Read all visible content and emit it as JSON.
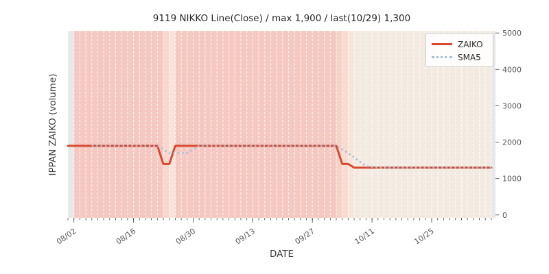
{
  "chart_data": {
    "type": "line",
    "title": "9119 NIKKO Line(Close) / max 1,900 / last(10/29) 1,300",
    "xlabel": "DATE",
    "ylabel": "IPPAN ZAIKO (volume)",
    "ylim": [
      0,
      5000
    ],
    "yticks": [
      0,
      1000,
      2000,
      3000,
      4000,
      5000
    ],
    "xticks": {
      "labels": [
        "08/02",
        "08/16",
        "08/30",
        "09/13",
        "09/27",
        "10/11",
        "10/25"
      ],
      "indices": [
        1,
        11,
        21,
        31,
        41,
        51,
        61
      ]
    },
    "n_points": 72,
    "legend_position": "upper right",
    "grid": "vertical-daily-dashed",
    "colors": {
      "zaiko_line": "#d9492f",
      "sma5_line": "#a3bedb",
      "grid_line": "#ffffff",
      "tick_text": "#555555",
      "title_text": "#262626",
      "figure_bg": "#ffffff",
      "plot_bg": "#ffffff"
    },
    "series": [
      {
        "name": "ZAIKO",
        "style": "solid",
        "values": [
          1900,
          1900,
          1900,
          1900,
          1900,
          1900,
          1900,
          1900,
          1900,
          1900,
          1900,
          1900,
          1900,
          1900,
          1900,
          1900,
          1400,
          1400,
          1900,
          1900,
          1900,
          1900,
          1900,
          1900,
          1900,
          1900,
          1900,
          1900,
          1900,
          1900,
          1900,
          1900,
          1900,
          1900,
          1900,
          1900,
          1900,
          1900,
          1900,
          1900,
          1900,
          1900,
          1900,
          1900,
          1900,
          1900,
          1400,
          1400,
          1300,
          1300,
          1300,
          1300,
          1300,
          1300,
          1300,
          1300,
          1300,
          1300,
          1300,
          1300,
          1300,
          1300,
          1300,
          1300,
          1300,
          1300,
          1300,
          1300,
          1300,
          1300,
          1300,
          1300
        ]
      },
      {
        "name": "SMA5",
        "style": "dotted",
        "values": [
          null,
          null,
          null,
          null,
          1900,
          1900,
          1900,
          1900,
          1900,
          1900,
          1900,
          1900,
          1900,
          1900,
          1900,
          1900,
          1800,
          1700,
          1700,
          1700,
          1700,
          1800,
          1900,
          1900,
          1900,
          1900,
          1900,
          1900,
          1900,
          1900,
          1900,
          1900,
          1900,
          1900,
          1900,
          1900,
          1900,
          1900,
          1900,
          1900,
          1900,
          1900,
          1900,
          1900,
          1900,
          1900,
          1800,
          1700,
          1580,
          1460,
          1340,
          1320,
          1300,
          1300,
          1300,
          1300,
          1300,
          1300,
          1300,
          1300,
          1300,
          1300,
          1300,
          1300,
          1300,
          1300,
          1300,
          1300,
          1300,
          1300,
          1300,
          1300
        ]
      }
    ],
    "background_bands": [
      {
        "from": 0,
        "to": 1,
        "color": "#e8e8e8"
      },
      {
        "from": 1,
        "to": 16,
        "color": "#f5c8c1"
      },
      {
        "from": 16,
        "to": 17,
        "color": "#f8d7cf"
      },
      {
        "from": 17,
        "to": 18,
        "color": "#fae3db"
      },
      {
        "from": 18,
        "to": 45,
        "color": "#f5c8c1"
      },
      {
        "from": 45,
        "to": 46,
        "color": "#f6d2c9"
      },
      {
        "from": 46,
        "to": 47,
        "color": "#f8dcd1"
      },
      {
        "from": 47,
        "to": 48,
        "color": "#f6e6da"
      },
      {
        "from": 48,
        "to": 71,
        "color": "#f3ebe1"
      },
      {
        "from": 71,
        "to": 72,
        "color": "#e8e8e8"
      }
    ]
  }
}
